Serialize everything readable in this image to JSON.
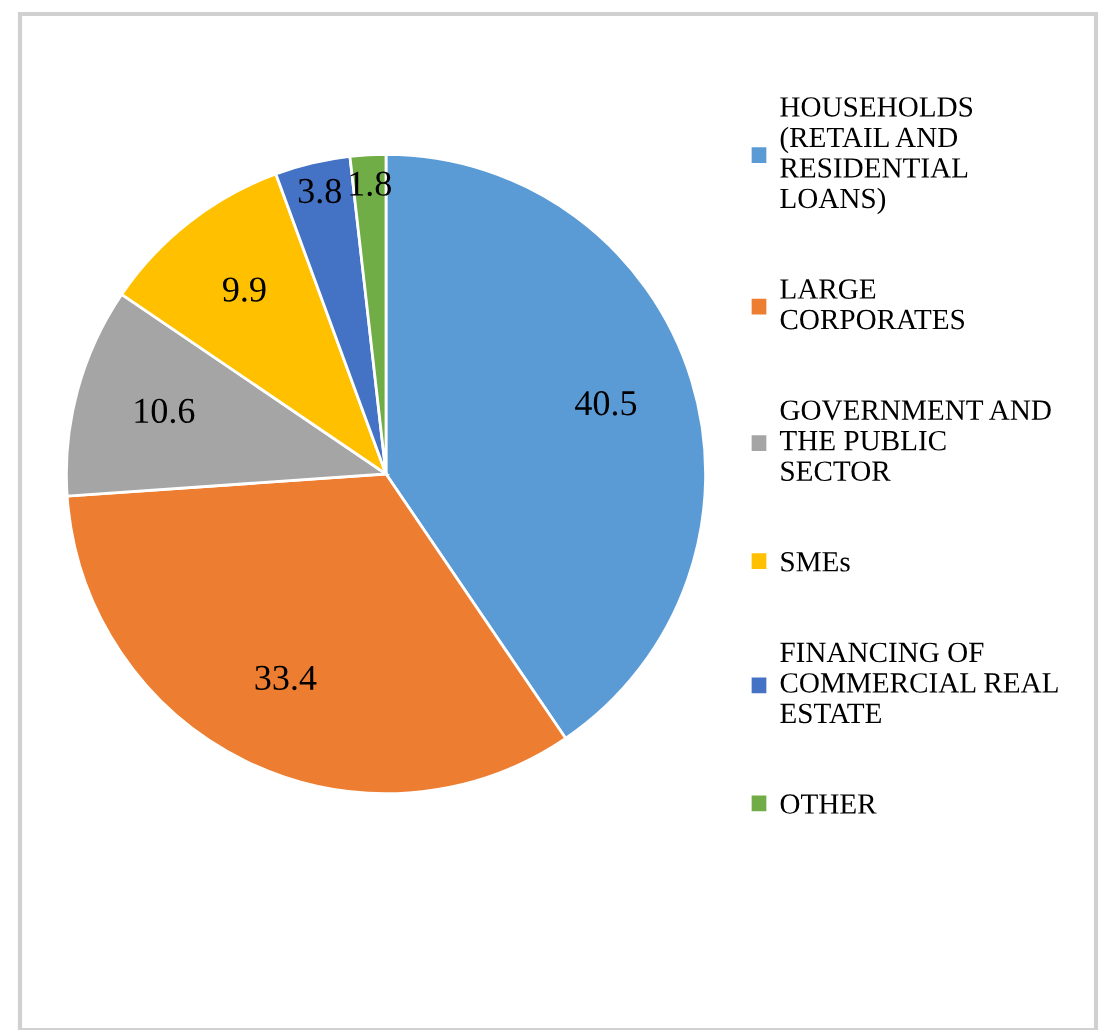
{
  "chart_data": {
    "type": "pie",
    "categories": [
      "HOUSEHOLDS (RETAIL AND RESIDENTIAL LOANS)",
      "LARGE CORPORATES",
      "GOVERNMENT AND THE PUBLIC SECTOR",
      "SMEs",
      "FINANCING OF COMMERCIAL REAL ESTATE",
      "OTHER"
    ],
    "values": [
      40.5,
      33.4,
      10.6,
      9.9,
      3.8,
      1.8
    ],
    "colors": [
      "#5b9bd5",
      "#ed7d31",
      "#a5a5a5",
      "#ffc000",
      "#4472c4",
      "#70ad47"
    ],
    "data_labels": true,
    "legend": "right"
  }
}
